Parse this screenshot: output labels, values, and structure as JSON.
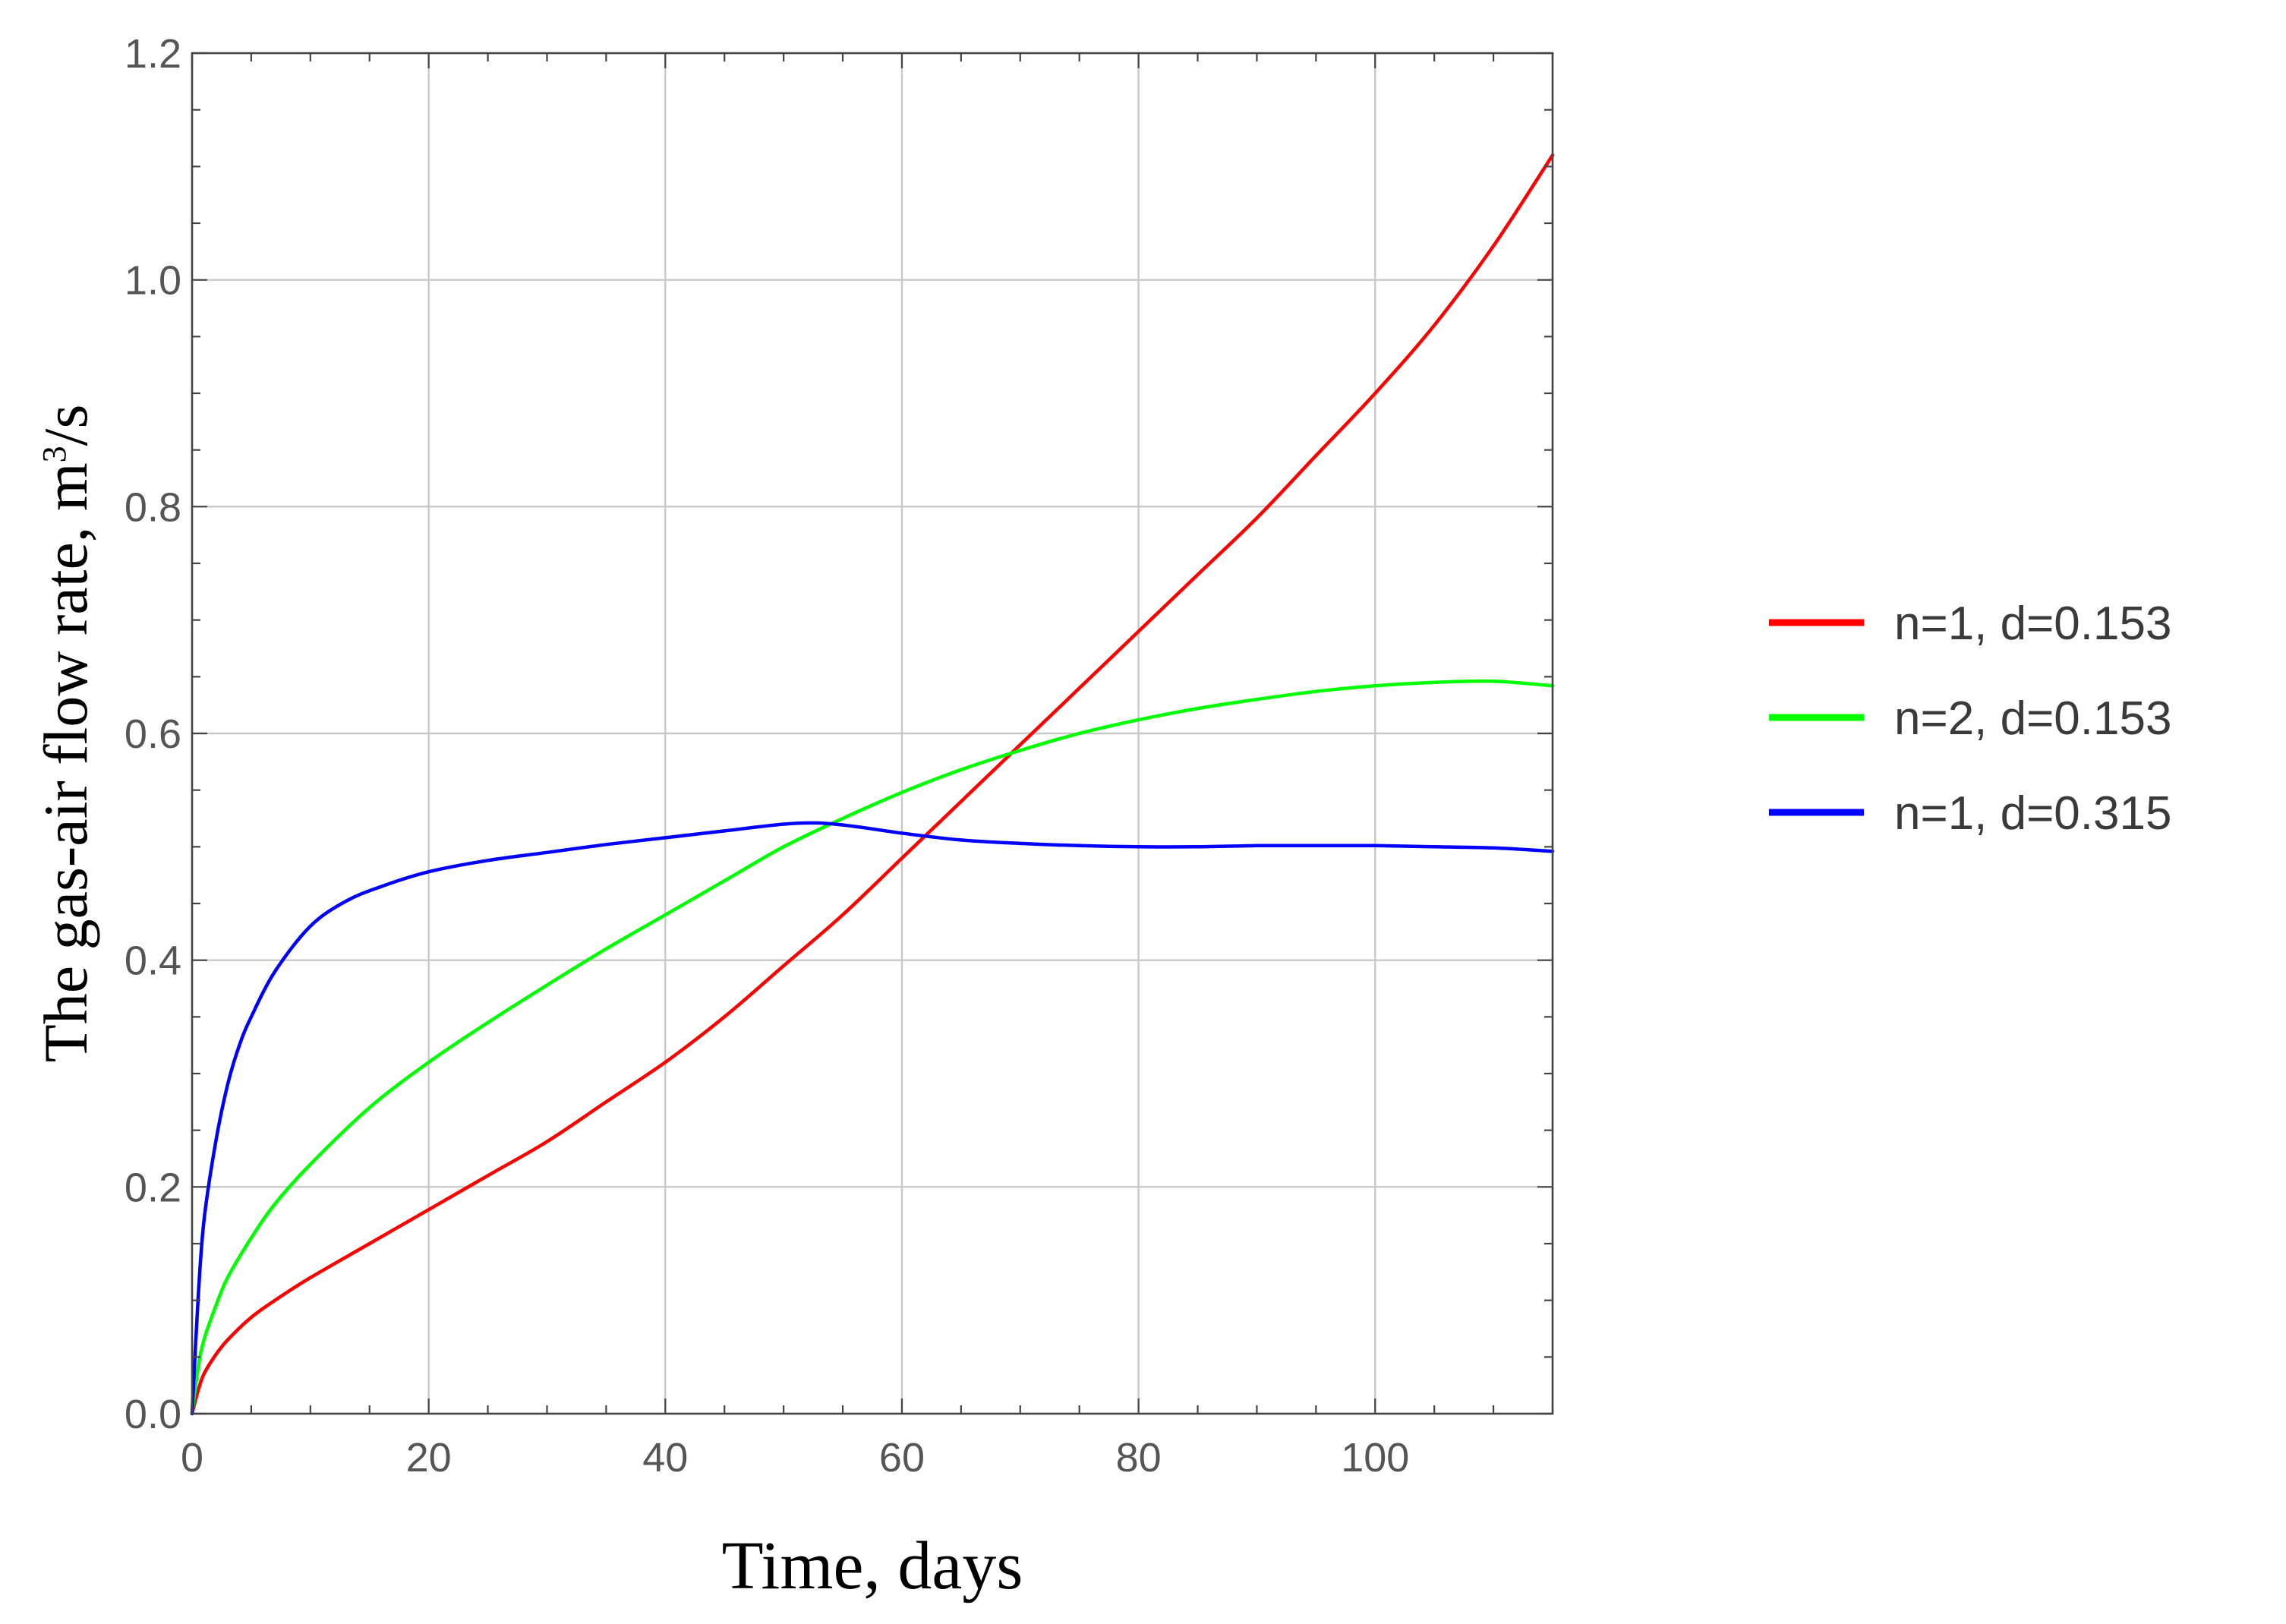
{
  "chart_data": {
    "type": "line",
    "xlabel": "Time, days",
    "ylabel": "The gas-air flow rate, m",
    "ylabel_sup": "3",
    "ylabel_end": "/s",
    "xlim": [
      0,
      115
    ],
    "ylim": [
      0,
      1.2
    ],
    "x_ticks": [
      0,
      20,
      40,
      60,
      80,
      100
    ],
    "x_tick_labels": [
      "0",
      "20",
      "40",
      "60",
      "80",
      "100"
    ],
    "y_ticks": [
      0,
      0.2,
      0.4,
      0.6,
      0.8,
      1.0,
      1.2
    ],
    "y_tick_labels": [
      "0.0",
      "0.2",
      "0.4",
      "0.6",
      "0.8",
      "1.0",
      "1.2"
    ],
    "grid": true,
    "legend_position": "right",
    "series": [
      {
        "name": "n=1, d=0.153",
        "color": "#ff0000",
        "x": [
          0,
          0.5,
          1,
          2,
          3,
          5,
          7,
          10,
          15,
          20,
          25,
          30,
          35,
          40,
          45,
          50,
          55,
          60,
          65,
          70,
          75,
          80,
          85,
          90,
          95,
          100,
          105,
          110,
          115
        ],
        "y": [
          0.0,
          0.02,
          0.035,
          0.052,
          0.065,
          0.085,
          0.1,
          0.12,
          0.15,
          0.18,
          0.21,
          0.24,
          0.275,
          0.31,
          0.35,
          0.395,
          0.44,
          0.49,
          0.54,
          0.59,
          0.64,
          0.69,
          0.74,
          0.79,
          0.845,
          0.9,
          0.96,
          1.03,
          1.11
        ]
      },
      {
        "name": "n=2, d=0.153",
        "color": "#00ff00",
        "x": [
          0,
          0.5,
          1,
          2,
          3,
          5,
          7,
          10,
          15,
          20,
          25,
          30,
          35,
          40,
          45,
          50,
          55,
          60,
          65,
          70,
          75,
          80,
          85,
          90,
          95,
          100,
          105,
          110,
          115
        ],
        "y": [
          0.0,
          0.04,
          0.065,
          0.095,
          0.12,
          0.155,
          0.185,
          0.22,
          0.27,
          0.31,
          0.345,
          0.378,
          0.41,
          0.44,
          0.47,
          0.5,
          0.525,
          0.548,
          0.568,
          0.585,
          0.6,
          0.612,
          0.622,
          0.63,
          0.637,
          0.642,
          0.645,
          0.646,
          0.642
        ]
      },
      {
        "name": "n=1, d=0.315",
        "color": "#0000ff",
        "x": [
          0,
          0.5,
          1,
          2,
          3,
          4,
          5,
          7,
          10,
          13,
          16,
          20,
          25,
          30,
          35,
          40,
          45,
          50,
          53,
          56,
          60,
          65,
          70,
          75,
          80,
          85,
          90,
          95,
          100,
          105,
          110,
          115
        ],
        "y": [
          0.0,
          0.1,
          0.17,
          0.24,
          0.29,
          0.325,
          0.35,
          0.39,
          0.43,
          0.452,
          0.465,
          0.478,
          0.488,
          0.495,
          0.502,
          0.508,
          0.514,
          0.52,
          0.521,
          0.518,
          0.512,
          0.506,
          0.503,
          0.501,
          0.5,
          0.5,
          0.501,
          0.501,
          0.501,
          0.5,
          0.499,
          0.496
        ]
      }
    ]
  }
}
